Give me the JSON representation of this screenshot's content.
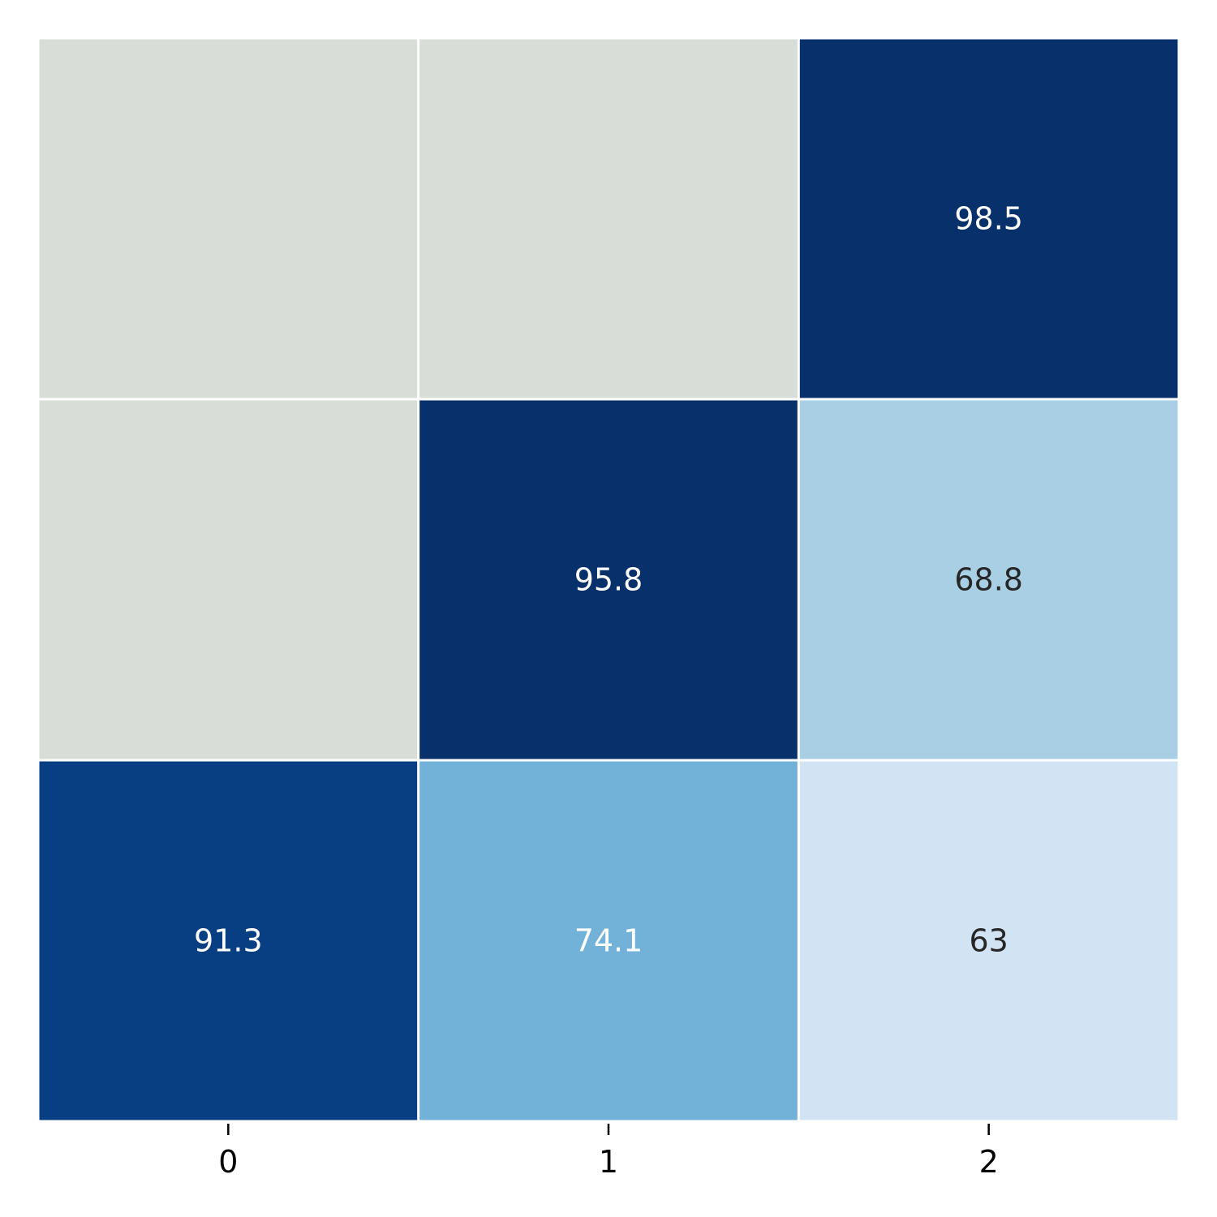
{
  "chart_data": {
    "type": "heatmap",
    "title": "",
    "xlabel": "",
    "ylabel": "",
    "columns": [
      "0",
      "1",
      "2"
    ],
    "rows": [
      "",
      "",
      ""
    ],
    "values": [
      [
        null,
        null,
        98.5
      ],
      [
        null,
        95.8,
        68.8
      ],
      [
        91.3,
        74.1,
        63
      ]
    ],
    "labels": [
      [
        "",
        "",
        "98.5"
      ],
      [
        "",
        "95.8",
        "68.8"
      ],
      [
        "91.3",
        "74.1",
        "63"
      ]
    ],
    "missing_color": "#d8ddd7",
    "colormap": "Blues",
    "colorbar": false,
    "grid": false,
    "cell_border_color": "#ffffff"
  }
}
